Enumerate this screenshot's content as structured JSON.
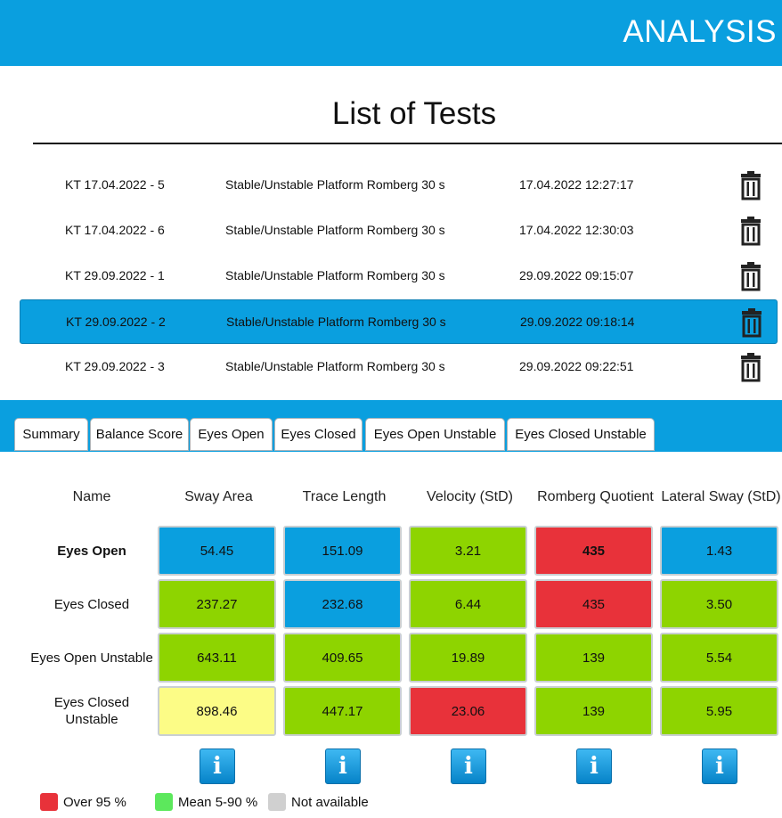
{
  "header": {
    "title": "ANALYSIS"
  },
  "list": {
    "title": "List of Tests",
    "rows": [
      {
        "name": "KT 17.04.2022 - 5",
        "type": "Stable/Unstable Platform Romberg 30 s",
        "datetime": "17.04.2022 12:27:17"
      },
      {
        "name": "KT 17.04.2022 - 6",
        "type": "Stable/Unstable Platform Romberg 30 s",
        "datetime": "17.04.2022 12:30:03"
      },
      {
        "name": "KT 29.09.2022 - 1",
        "type": "Stable/Unstable Platform Romberg 30 s",
        "datetime": "29.09.2022 09:15:07"
      },
      {
        "name": "KT 29.09.2022 - 2",
        "type": "Stable/Unstable Platform Romberg 30 s",
        "datetime": "29.09.2022 09:18:14",
        "selected": true
      },
      {
        "name": "KT 29.09.2022 - 3",
        "type": "Stable/Unstable Platform Romberg 30 s",
        "datetime": "29.09.2022 09:22:51"
      }
    ],
    "delete_icon": "trash-icon"
  },
  "tabs": [
    "Summary",
    "Balance Score",
    "Eyes Open",
    "Eyes Closed",
    "Eyes Open Unstable",
    "Eyes Closed Unstable"
  ],
  "table": {
    "name_header": "Name",
    "columns": [
      "Sway Area",
      "Trace Length",
      "Velocity (StD)",
      "Romberg Quotient",
      "Lateral Sway (StD)"
    ],
    "rows": [
      {
        "label": "Eyes Open",
        "bold": true,
        "values": [
          "54.45",
          "151.09",
          "3.21",
          "435",
          "1.43"
        ],
        "colors": [
          "blue",
          "blue",
          "green",
          "red",
          "blue"
        ]
      },
      {
        "label": "Eyes Closed",
        "values": [
          "237.27",
          "232.68",
          "6.44",
          "435",
          "3.50"
        ],
        "colors": [
          "green",
          "blue",
          "green",
          "red",
          "green"
        ]
      },
      {
        "label": "Eyes Open Unstable",
        "values": [
          "643.11",
          "409.65",
          "19.89",
          "139",
          "5.54"
        ],
        "colors": [
          "green",
          "green",
          "green",
          "green",
          "green"
        ]
      },
      {
        "label": "Eyes Closed Unstable",
        "values": [
          "898.46",
          "447.17",
          "23.06",
          "139",
          "5.95"
        ],
        "colors": [
          "yellow",
          "green",
          "red",
          "green",
          "green"
        ]
      }
    ],
    "info_label": "i"
  },
  "legend": [
    {
      "label": "Over 95 %",
      "color": "#e8323a"
    },
    {
      "label": "Mean 5-90 %",
      "color": "#5ce85c"
    },
    {
      "label": "Not available",
      "color": "#d0d0d0"
    }
  ],
  "palette": {
    "accent": "#0a9fdf",
    "blue": "#0a9fdf",
    "green": "#8ed400",
    "red": "#e8323a",
    "yellow": "#fcfc86"
  }
}
